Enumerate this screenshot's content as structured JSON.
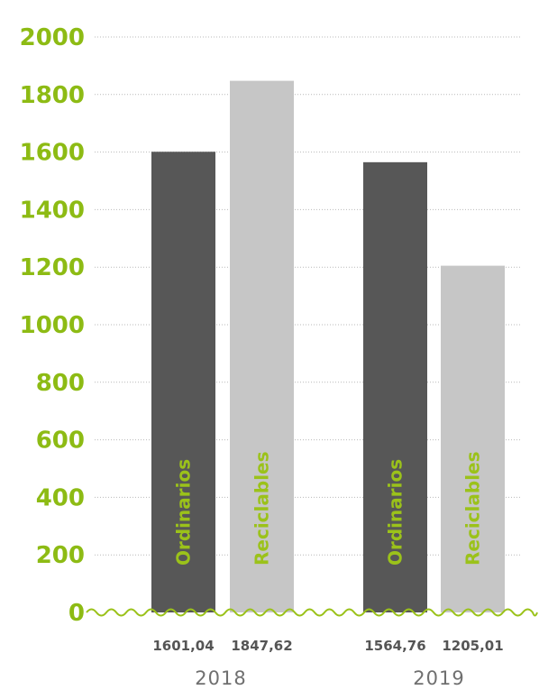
{
  "colors": {
    "accent": "#8dbb14",
    "ordinarios": "#575757",
    "reciclables": "#c6c6c6",
    "value_text": "#555555",
    "year_text": "#6f6f6f"
  },
  "chart_data": {
    "type": "bar",
    "ylim": [
      0,
      2000
    ],
    "yticks": [
      0,
      200,
      400,
      600,
      800,
      1000,
      1200,
      1400,
      1600,
      1800,
      2000
    ],
    "grid": true,
    "groups": [
      {
        "year": "2018",
        "bars": [
          {
            "label": "Ordinarios",
            "value": 1601.04,
            "value_label": "1601,04",
            "color_key": "ordinarios"
          },
          {
            "label": "Reciclables",
            "value": 1847.62,
            "value_label": "1847,62",
            "color_key": "reciclables"
          }
        ]
      },
      {
        "year": "2019",
        "bars": [
          {
            "label": "Ordinarios",
            "value": 1564.76,
            "value_label": "1564,76",
            "color_key": "ordinarios"
          },
          {
            "label": "Reciclables",
            "value": 1205.01,
            "value_label": "1205,01",
            "color_key": "reciclables"
          }
        ]
      }
    ]
  }
}
